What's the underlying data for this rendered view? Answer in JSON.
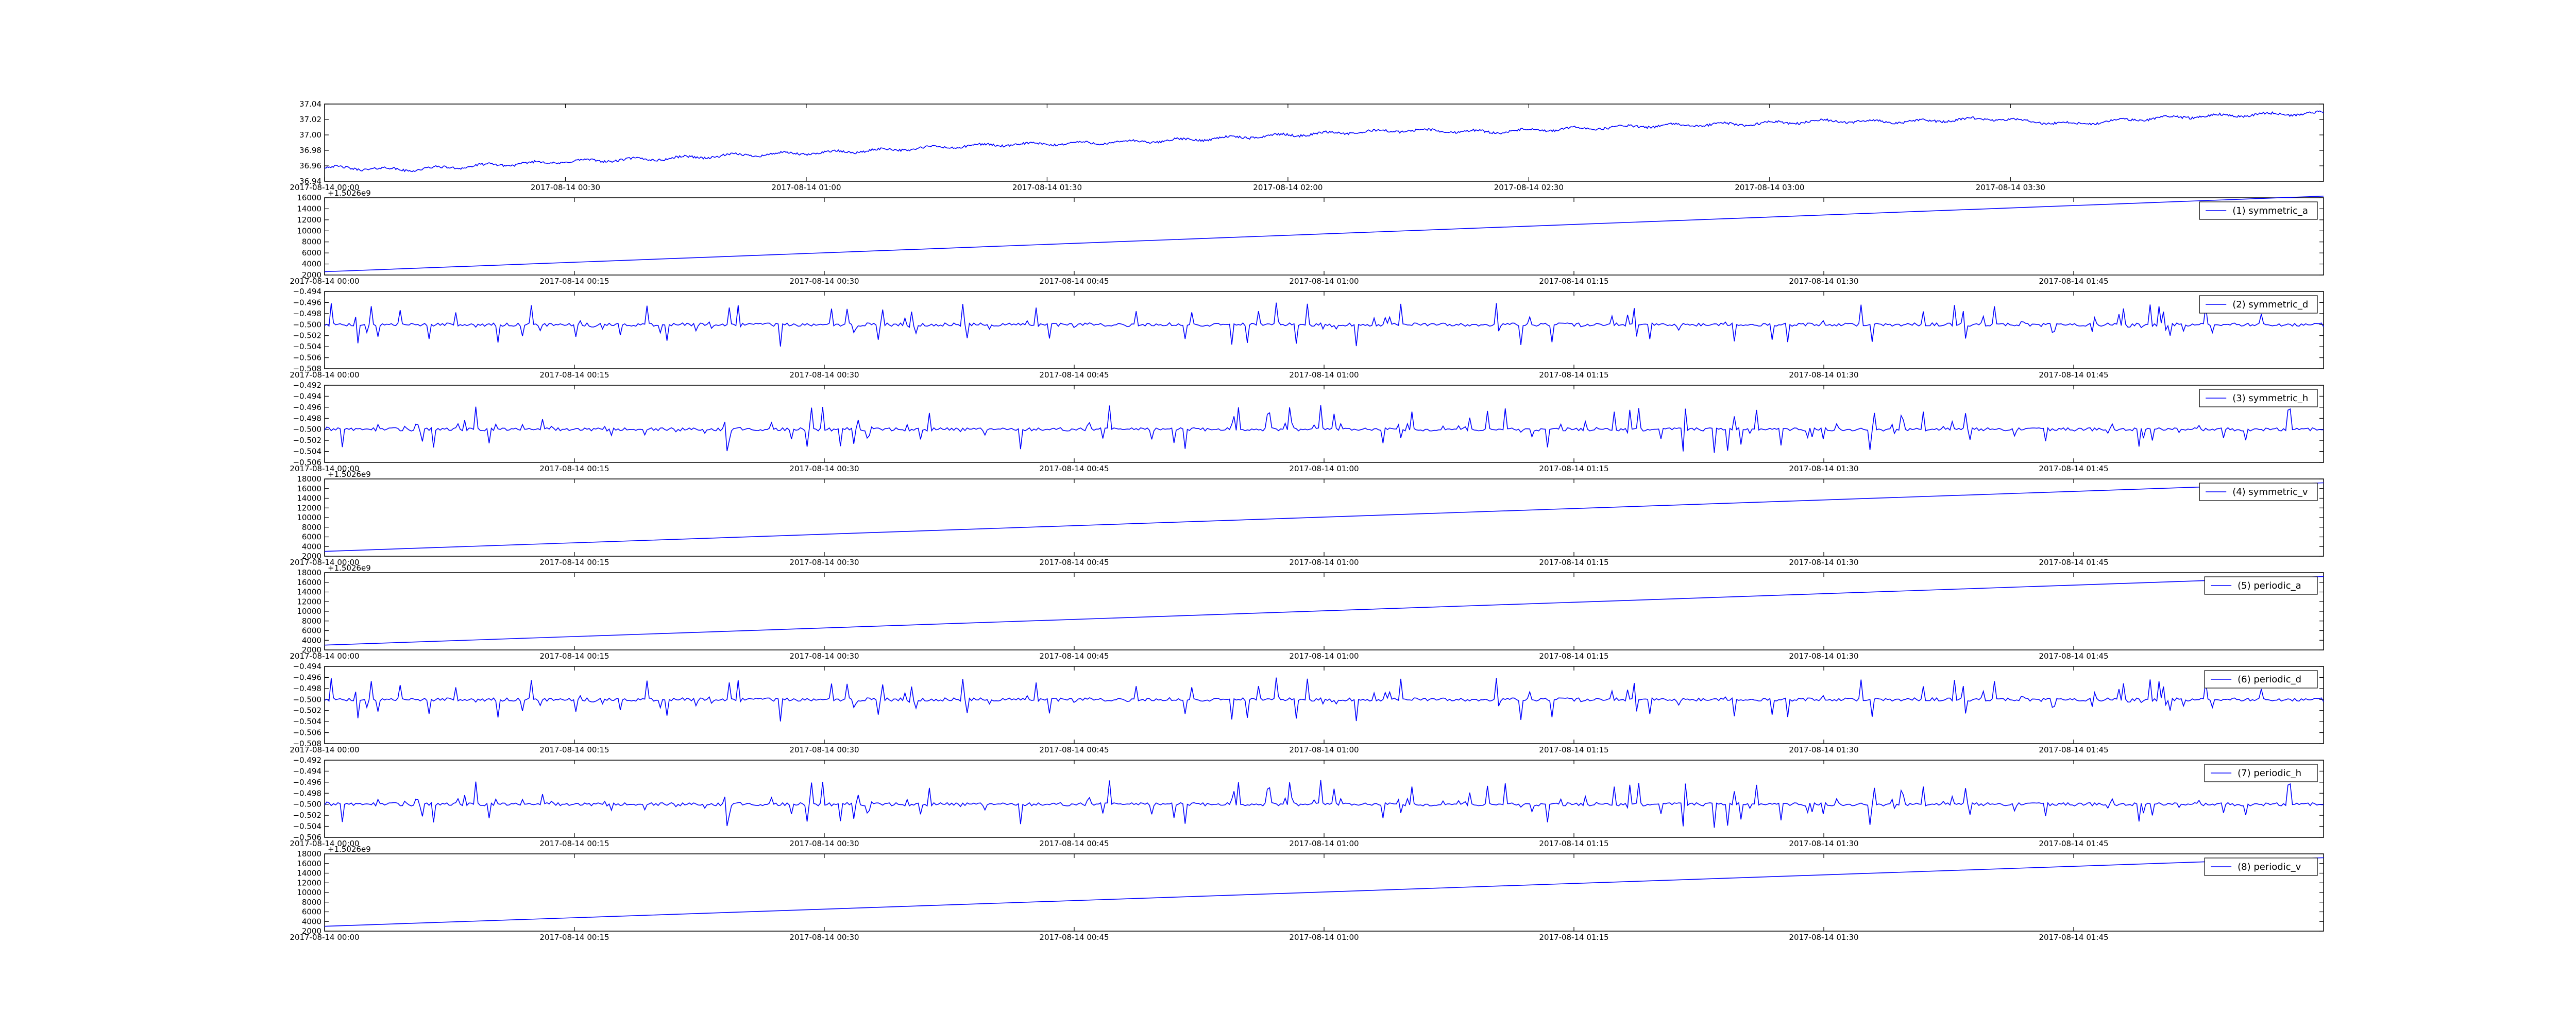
{
  "figure": {
    "background": "#ffffff",
    "line_color": "#0000ff"
  },
  "chart_data": [
    {
      "type": "line",
      "title": "",
      "xlabel": "",
      "ylabel": "",
      "ylim": [
        36.94,
        37.04
      ],
      "yticks": [
        "36.94",
        "36.96",
        "36.98",
        "37.00",
        "37.02",
        "37.04"
      ],
      "xticks": [
        "2017-08-14 00:00",
        "2017-08-14 00:30",
        "2017-08-14 01:00",
        "2017-08-14 01:30",
        "2017-08-14 02:00",
        "2017-08-14 02:30",
        "2017-08-14 03:00",
        "2017-08-14 03:30"
      ],
      "offset_label": "",
      "legend": null,
      "series": [
        {
          "x": [
            "00:00",
            "00:10",
            "00:20",
            "00:30",
            "00:40",
            "00:50",
            "01:00",
            "01:10",
            "01:20",
            "01:30",
            "01:40",
            "01:50",
            "02:00",
            "02:10",
            "02:20",
            "02:30",
            "02:40",
            "02:50",
            "03:00",
            "03:10",
            "03:20",
            "03:30",
            "03:40",
            "03:50",
            "04:00"
          ],
          "values": [
            36.958,
            36.955,
            36.961,
            36.966,
            36.969,
            36.974,
            36.977,
            36.982,
            36.987,
            36.989,
            36.992,
            36.997,
            37.002,
            37.006,
            37.004,
            37.008,
            37.012,
            37.014,
            37.018,
            37.017,
            37.021,
            37.014,
            37.022,
            37.026,
            37.028
          ],
          "noise": 0.003
        }
      ]
    },
    {
      "type": "line",
      "ylim": [
        2000,
        16000
      ],
      "yticks": [
        "2000",
        "4000",
        "6000",
        "8000",
        "10000",
        "12000",
        "14000",
        "16000"
      ],
      "xticks": [
        "2017-08-14 00:00",
        "2017-08-14 00:15",
        "2017-08-14 00:30",
        "2017-08-14 00:45",
        "2017-08-14 01:00",
        "2017-08-14 01:15",
        "2017-08-14 01:30",
        "2017-08-14 01:45"
      ],
      "offset_label": "+1.5026e9",
      "legend": "(1) symmetric_a",
      "series": [
        {
          "kind": "linear",
          "start": 2600,
          "end": 16300
        }
      ]
    },
    {
      "type": "line",
      "ylim": [
        -0.508,
        -0.494
      ],
      "yticks": [
        "−0.508",
        "−0.506",
        "−0.504",
        "−0.502",
        "−0.500",
        "−0.498",
        "−0.496",
        "−0.494"
      ],
      "xticks": [
        "2017-08-14 00:00",
        "2017-08-14 00:15",
        "2017-08-14 00:30",
        "2017-08-14 00:45",
        "2017-08-14 01:00",
        "2017-08-14 01:15",
        "2017-08-14 01:30",
        "2017-08-14 01:45"
      ],
      "offset_label": "",
      "legend": "(2) symmetric_d",
      "series": [
        {
          "kind": "spiky",
          "baseline": -0.5,
          "spike_max": 0.004,
          "seed": 7
        }
      ]
    },
    {
      "type": "line",
      "ylim": [
        -0.506,
        -0.492
      ],
      "yticks": [
        "−0.506",
        "−0.504",
        "−0.502",
        "−0.500",
        "−0.498",
        "−0.496",
        "−0.494",
        "−0.492"
      ],
      "xticks": [
        "2017-08-14 00:00",
        "2017-08-14 00:15",
        "2017-08-14 00:30",
        "2017-08-14 00:45",
        "2017-08-14 01:00",
        "2017-08-14 01:15",
        "2017-08-14 01:30",
        "2017-08-14 01:45"
      ],
      "offset_label": "",
      "legend": "(3) symmetric_h",
      "series": [
        {
          "kind": "spiky",
          "baseline": -0.5,
          "spike_max": 0.0045,
          "seed": 13
        }
      ]
    },
    {
      "type": "line",
      "ylim": [
        2000,
        18000
      ],
      "yticks": [
        "2000",
        "4000",
        "6000",
        "8000",
        "10000",
        "12000",
        "14000",
        "16000",
        "18000"
      ],
      "xticks": [
        "2017-08-14 00:00",
        "2017-08-14 00:15",
        "2017-08-14 00:30",
        "2017-08-14 00:45",
        "2017-08-14 01:00",
        "2017-08-14 01:15",
        "2017-08-14 01:30",
        "2017-08-14 01:45"
      ],
      "offset_label": "+1.5026e9",
      "legend": "(4) symmetric_v",
      "series": [
        {
          "kind": "linear",
          "start": 3000,
          "end": 17200
        }
      ]
    },
    {
      "type": "line",
      "ylim": [
        2000,
        18000
      ],
      "yticks": [
        "2000",
        "4000",
        "6000",
        "8000",
        "10000",
        "12000",
        "14000",
        "16000",
        "18000"
      ],
      "xticks": [
        "2017-08-14 00:00",
        "2017-08-14 00:15",
        "2017-08-14 00:30",
        "2017-08-14 00:45",
        "2017-08-14 01:00",
        "2017-08-14 01:15",
        "2017-08-14 01:30",
        "2017-08-14 01:45"
      ],
      "offset_label": "+1.5026e9",
      "legend": "(5) periodic_a",
      "series": [
        {
          "kind": "linear",
          "start": 3000,
          "end": 17200
        }
      ]
    },
    {
      "type": "line",
      "ylim": [
        -0.508,
        -0.494
      ],
      "yticks": [
        "−0.508",
        "−0.506",
        "−0.504",
        "−0.502",
        "−0.500",
        "−0.498",
        "−0.496",
        "−0.494"
      ],
      "xticks": [
        "2017-08-14 00:00",
        "2017-08-14 00:15",
        "2017-08-14 00:30",
        "2017-08-14 00:45",
        "2017-08-14 01:00",
        "2017-08-14 01:15",
        "2017-08-14 01:30",
        "2017-08-14 01:45"
      ],
      "offset_label": "",
      "legend": "(6) periodic_d",
      "series": [
        {
          "kind": "spiky",
          "baseline": -0.5,
          "spike_max": 0.004,
          "seed": 7
        }
      ]
    },
    {
      "type": "line",
      "ylim": [
        -0.506,
        -0.492
      ],
      "yticks": [
        "−0.506",
        "−0.504",
        "−0.502",
        "−0.500",
        "−0.498",
        "−0.496",
        "−0.494",
        "−0.492"
      ],
      "xticks": [
        "2017-08-14 00:00",
        "2017-08-14 00:15",
        "2017-08-14 00:30",
        "2017-08-14 00:45",
        "2017-08-14 01:00",
        "2017-08-14 01:15",
        "2017-08-14 01:30",
        "2017-08-14 01:45"
      ],
      "offset_label": "",
      "legend": "(7) periodic_h",
      "series": [
        {
          "kind": "spiky",
          "baseline": -0.5,
          "spike_max": 0.0045,
          "seed": 13
        }
      ]
    },
    {
      "type": "line",
      "ylim": [
        2000,
        18000
      ],
      "yticks": [
        "2000",
        "4000",
        "6000",
        "8000",
        "10000",
        "12000",
        "14000",
        "16000",
        "18000"
      ],
      "xticks": [
        "2017-08-14 00:00",
        "2017-08-14 00:15",
        "2017-08-14 00:30",
        "2017-08-14 00:45",
        "2017-08-14 01:00",
        "2017-08-14 01:15",
        "2017-08-14 01:30",
        "2017-08-14 01:45"
      ],
      "offset_label": "+1.5026e9",
      "legend": "(8) periodic_v",
      "series": [
        {
          "kind": "linear",
          "start": 3000,
          "end": 17200
        }
      ]
    }
  ]
}
